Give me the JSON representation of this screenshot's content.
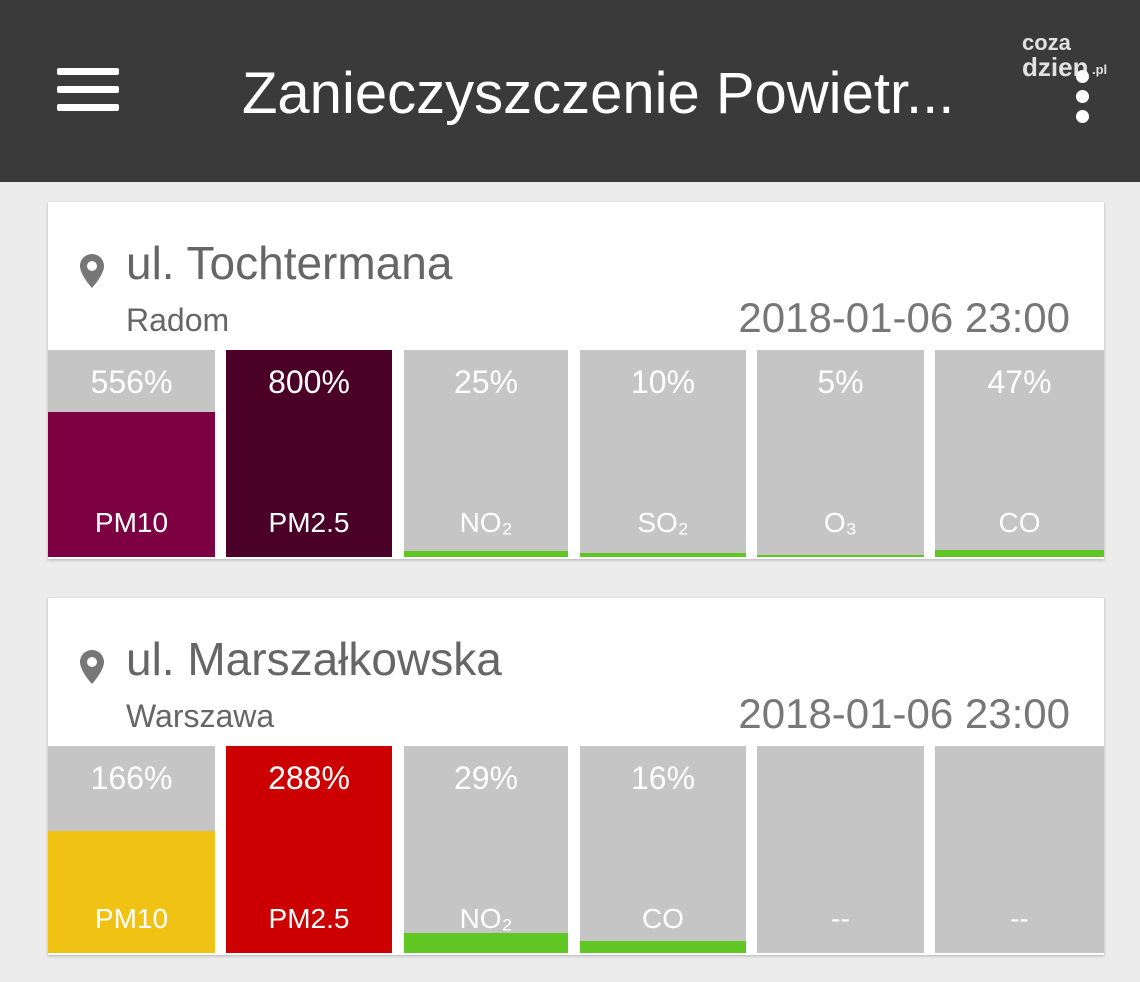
{
  "app_bar": {
    "title": "Zanieczyszczenie Powietr..."
  },
  "watermark": {
    "line1": "coza",
    "line2": "dzien",
    "suffix": ".pl"
  },
  "cards": [
    {
      "street": "ul. Tochtermana",
      "city": "Radom",
      "datetime": "2018-01-06 23:00",
      "tiles": [
        {
          "value": "556%",
          "label": "PM10",
          "color": "#7d0042"
        },
        {
          "value": "800%",
          "label": "PM2.5",
          "color": "#4b0027"
        },
        {
          "value": "25%",
          "label": "NO₂",
          "color": "#5fc623"
        },
        {
          "value": "10%",
          "label": "SO₂",
          "color": "#5fc623"
        },
        {
          "value": "5%",
          "label": "O₃",
          "color": "#5fc623"
        },
        {
          "value": "47%",
          "label": "CO",
          "color": "#5fc623"
        }
      ]
    },
    {
      "street": "ul. Marszałkowska",
      "city": "Warszawa",
      "datetime": "2018-01-06 23:00",
      "tiles": [
        {
          "value": "166%",
          "label": "PM10",
          "color": "#f0c214"
        },
        {
          "value": "288%",
          "label": "PM2.5",
          "color": "#cc0000"
        },
        {
          "value": "29%",
          "label": "NO₂",
          "color": "#5fc623"
        },
        {
          "value": "16%",
          "label": "CO",
          "color": "#5fc623"
        },
        {
          "label": "--"
        },
        {
          "label": "--"
        }
      ]
    }
  ]
}
